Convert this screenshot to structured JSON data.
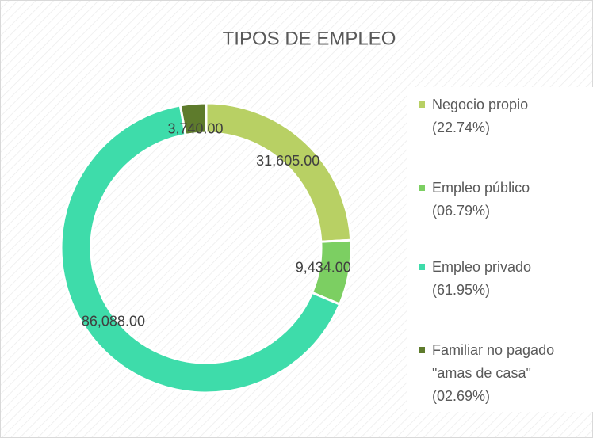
{
  "chart_data": {
    "type": "donut",
    "title": "TIPOS DE EMPLEO",
    "series": [
      {
        "name": "Negocio propio (22.74%)",
        "color": "#b8d064",
        "values": [
          31605
        ],
        "value_labels": [
          "31,605.00"
        ]
      },
      {
        "name": "Empleo público (06.79%)",
        "color": "#7ccf62",
        "values": [
          9434
        ],
        "value_labels": [
          "9,434.00"
        ]
      },
      {
        "name": "Empleo privado (61.95%)",
        "color": "#3edcaa",
        "values": [
          86088
        ],
        "value_labels": [
          "86,088.00"
        ]
      },
      {
        "name": "Familiar no pagado \"amas de casa\" (02.69%)",
        "color": "#5e7b2c",
        "values": [
          3740
        ],
        "value_labels": [
          "3,740.00"
        ]
      }
    ],
    "legend": "right"
  }
}
